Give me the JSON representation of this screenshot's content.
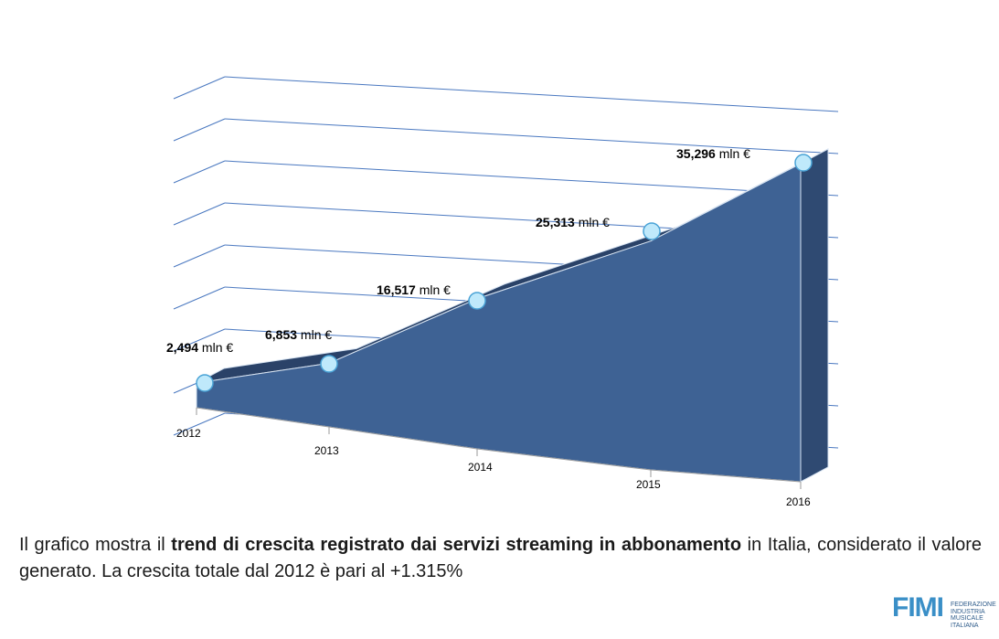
{
  "chart_data": {
    "type": "area",
    "categories": [
      "2012",
      "2013",
      "2014",
      "2015",
      "2016"
    ],
    "values": [
      2.494,
      6.853,
      16.517,
      25.313,
      35.296
    ],
    "data_labels": [
      {
        "value": "2,494",
        "unit": "mln €"
      },
      {
        "value": "6,853",
        "unit": "mln €"
      },
      {
        "value": "16,517",
        "unit": "mln €"
      },
      {
        "value": "25,313",
        "unit": "mln €"
      },
      {
        "value": "35,296",
        "unit": "mln €"
      }
    ],
    "ylim": [
      0,
      40
    ],
    "grid": true,
    "title": "",
    "xlabel": "",
    "ylabel": "",
    "colors": {
      "area_front": "#3e6294",
      "area_top": "#2a4268",
      "area_side": "#2f4a72",
      "marker_fill": "#bfe9fb",
      "marker_stroke": "#4aa3d6",
      "gridline": "#4a78c0",
      "axis": "#9a9a9a"
    }
  },
  "caption": {
    "before": "Il grafico mostra il ",
    "bold": "trend di crescita registrato dai servizi streaming in abbonamento",
    "after": " in Italia, considerato il valore generato. La crescita totale dal 2012 è pari al +1.315%"
  },
  "logo": {
    "word": "FIMI",
    "sub_lines": [
      "FEDERAZIONE",
      "INDUSTRIA",
      "MUSICALE",
      "ITALIANA"
    ]
  }
}
